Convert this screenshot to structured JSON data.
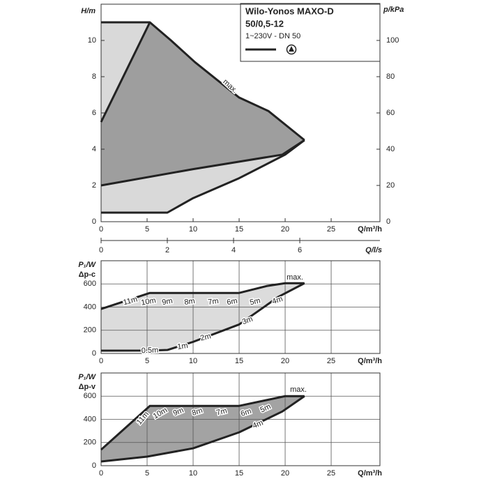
{
  "chart_data": [
    {
      "type": "area",
      "title": "Wilo-Yonos MAXO-D",
      "subtitle": "50/0,5-12",
      "note": "1~230V - DN 50",
      "x_label": "Q/m³/h",
      "y_label": "H/m",
      "y2_label": "p/kPa",
      "x2_label": "Q/l/s",
      "xlim": [
        0,
        30.3
      ],
      "xticks": [
        0,
        5,
        10,
        15,
        20,
        25
      ],
      "ylim": [
        0,
        12
      ],
      "yticks": [
        0,
        2,
        4,
        6,
        8,
        10
      ],
      "y2lim": [
        0,
        120
      ],
      "y2ticks": [
        0,
        20,
        40,
        60,
        80,
        100
      ],
      "x2lim": [
        0,
        8.42
      ],
      "x2ticks": [
        0,
        2,
        4,
        6
      ],
      "annotation": "max.",
      "fill": "#d9d9d9",
      "inner_fill": "#9e9e9e",
      "series": [
        {
          "color": "#222",
          "x": [
            0,
            5.3,
            7.6,
            10.2,
            15,
            18.2,
            22.1
          ],
          "values": [
            11,
            11,
            10,
            8.8,
            6.85,
            6.1,
            4.5
          ]
        },
        {
          "color": "#222",
          "x": [
            0,
            7.2,
            10,
            15,
            20,
            22.1
          ],
          "values": [
            0.5,
            0.5,
            1.3,
            2.4,
            3.7,
            4.5
          ]
        },
        {
          "color": "#222",
          "x": [
            0,
            5.3
          ],
          "values": [
            5.5,
            11
          ]
        },
        {
          "color": "#222",
          "x": [
            0,
            10,
            19.7,
            22.1
          ],
          "values": [
            2,
            2.9,
            3.7,
            4.5
          ]
        }
      ]
    },
    {
      "type": "area",
      "x_label": "Q/m³/h",
      "y_label": "P₁/W",
      "y_sublabel": "Δp-c",
      "xlim": [
        0,
        30.3
      ],
      "xticks": [
        0,
        5,
        10,
        15,
        20,
        25
      ],
      "ylim": [
        0,
        800
      ],
      "yticks": [
        0,
        200,
        400,
        600
      ],
      "grid": true,
      "annotation": "max.",
      "fill": "#dcdcdc",
      "curve_labels": [
        "11m",
        "10m",
        "9m",
        "8m",
        "7m",
        "6m",
        "5m",
        "4m",
        "3m",
        "2m",
        "1m",
        "0.5m"
      ],
      "series": [
        {
          "color": "#222",
          "x": [
            0,
            5.3,
            15,
            18,
            20,
            22.1
          ],
          "values": [
            384,
            522,
            522,
            582,
            606,
            606
          ]
        },
        {
          "color": "#222",
          "x": [
            0,
            5.3,
            7.2,
            10,
            15,
            19.3,
            22.1
          ],
          "values": [
            24,
            25,
            30,
            100,
            250,
            490,
            606
          ]
        }
      ]
    },
    {
      "type": "area",
      "x_label": "Q/m³/h",
      "y_label": "P₁/W",
      "y_sublabel": "Δp-v",
      "xlim": [
        0,
        30.3
      ],
      "xticks": [
        0,
        5,
        10,
        15,
        20,
        25
      ],
      "ylim": [
        0,
        800
      ],
      "yticks": [
        0,
        200,
        400,
        600
      ],
      "grid": true,
      "annotation": "max.",
      "fill": "#a3a3a3",
      "curve_labels": [
        "11m",
        "10m",
        "9m",
        "8m",
        "7m",
        "6m",
        "5m",
        "4m"
      ],
      "series": [
        {
          "color": "#222",
          "x": [
            0,
            5.3,
            15,
            20,
            22.1
          ],
          "values": [
            138,
            516,
            516,
            600,
            600
          ]
        },
        {
          "color": "#222",
          "x": [
            0,
            5,
            10,
            15,
            19.7,
            22.1
          ],
          "values": [
            36,
            78,
            150,
            288,
            468,
            600
          ]
        }
      ]
    }
  ]
}
